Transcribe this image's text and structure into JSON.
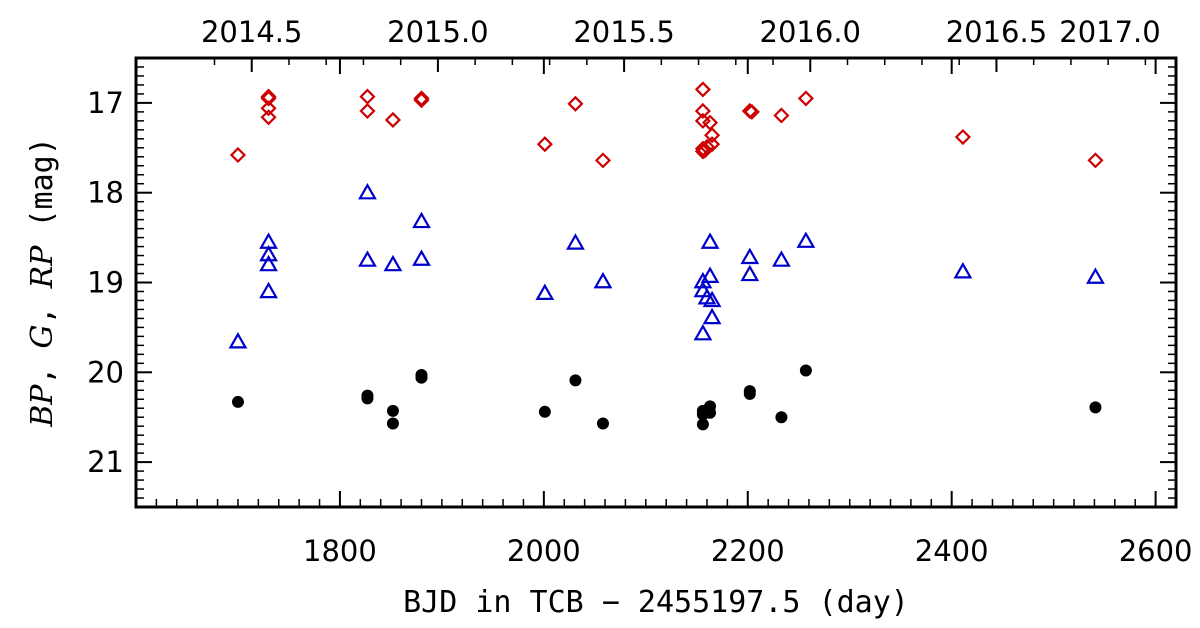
{
  "chart_data": {
    "type": "scatter",
    "xlabel": "BJD in TCB − 2455197.5 (day)",
    "ylabel_parts": [
      {
        "text": "BP",
        "italic": true
      },
      {
        "text": ", ",
        "italic": false
      },
      {
        "text": "G",
        "italic": true
      },
      {
        "text": ", ",
        "italic": false
      },
      {
        "text": "RP",
        "italic": true
      },
      {
        "text": " (mag)",
        "italic": false
      }
    ],
    "xlim": [
      1600,
      2620
    ],
    "ylim": [
      16.5,
      21.5
    ],
    "y_inverted": true,
    "x_ticks": [
      1800,
      2000,
      2200,
      2400,
      2600
    ],
    "x_tick_labels": [
      "1800",
      "2000",
      "2200",
      "2400",
      "2600"
    ],
    "y_ticks": [
      17,
      18,
      19,
      20,
      21
    ],
    "y_tick_labels": [
      "17",
      "18",
      "19",
      "20",
      "21"
    ],
    "top_axis": {
      "ticks": [
        1713.5,
        1896.1,
        2078.7,
        2261.3,
        2443.9,
        2626.5
      ],
      "tick_labels": [
        "2014.5",
        "2015.0",
        "2015.5",
        "2016.0",
        "2016.5",
        "2017.0"
      ]
    },
    "series": [
      {
        "marker": "diamond",
        "color": "#cc0000",
        "points": [
          [
            1700,
            17.58
          ],
          [
            1730,
            16.93
          ],
          [
            1730,
            16.95
          ],
          [
            1730,
            17.06
          ],
          [
            1730,
            17.16
          ],
          [
            1827,
            16.93
          ],
          [
            1827,
            17.09
          ],
          [
            1852,
            17.19
          ],
          [
            1880,
            16.95
          ],
          [
            1880,
            16.97
          ],
          [
            2001,
            17.46
          ],
          [
            2031,
            17.01
          ],
          [
            2058,
            17.64
          ],
          [
            2156,
            16.85
          ],
          [
            2156,
            17.09
          ],
          [
            2156,
            17.2
          ],
          [
            2156,
            17.51
          ],
          [
            2156,
            17.54
          ],
          [
            2158,
            17.53
          ],
          [
            2160,
            17.49
          ],
          [
            2163,
            17.22
          ],
          [
            2165,
            17.36
          ],
          [
            2165,
            17.46
          ],
          [
            2202,
            17.09
          ],
          [
            2204,
            17.1
          ],
          [
            2233,
            17.14
          ],
          [
            2257,
            16.95
          ],
          [
            2411,
            17.38
          ],
          [
            2541,
            17.64
          ]
        ]
      },
      {
        "marker": "triangle",
        "color": "#0000cc",
        "points": [
          [
            1700,
            19.66
          ],
          [
            1730,
            18.55
          ],
          [
            1730,
            18.69
          ],
          [
            1730,
            18.8
          ],
          [
            1730,
            19.1
          ],
          [
            1827,
            18.0
          ],
          [
            1827,
            18.75
          ],
          [
            1852,
            18.8
          ],
          [
            1880,
            18.32
          ],
          [
            1880,
            18.74
          ],
          [
            2001,
            19.12
          ],
          [
            2031,
            18.56
          ],
          [
            2058,
            18.99
          ],
          [
            2156,
            18.99
          ],
          [
            2156,
            19.09
          ],
          [
            2156,
            19.57
          ],
          [
            2160,
            19.17
          ],
          [
            2163,
            18.55
          ],
          [
            2163,
            18.93
          ],
          [
            2165,
            19.2
          ],
          [
            2165,
            19.39
          ],
          [
            2202,
            18.72
          ],
          [
            2202,
            18.91
          ],
          [
            2233,
            18.75
          ],
          [
            2257,
            18.54
          ],
          [
            2411,
            18.88
          ],
          [
            2541,
            18.94
          ]
        ]
      },
      {
        "marker": "circle",
        "color": "#000000",
        "points": [
          [
            1700,
            20.33
          ],
          [
            1827,
            20.26
          ],
          [
            1827,
            20.29
          ],
          [
            1852,
            20.43
          ],
          [
            1852,
            20.57
          ],
          [
            1880,
            20.03
          ],
          [
            1880,
            20.06
          ],
          [
            2001,
            20.44
          ],
          [
            2031,
            20.09
          ],
          [
            2058,
            20.57
          ],
          [
            2156,
            20.43
          ],
          [
            2156,
            20.47
          ],
          [
            2156,
            20.58
          ],
          [
            2160,
            20.42
          ],
          [
            2163,
            20.38
          ],
          [
            2163,
            20.45
          ],
          [
            2202,
            20.21
          ],
          [
            2202,
            20.24
          ],
          [
            2233,
            20.5
          ],
          [
            2257,
            19.98
          ],
          [
            2541,
            20.39
          ]
        ]
      }
    ]
  }
}
